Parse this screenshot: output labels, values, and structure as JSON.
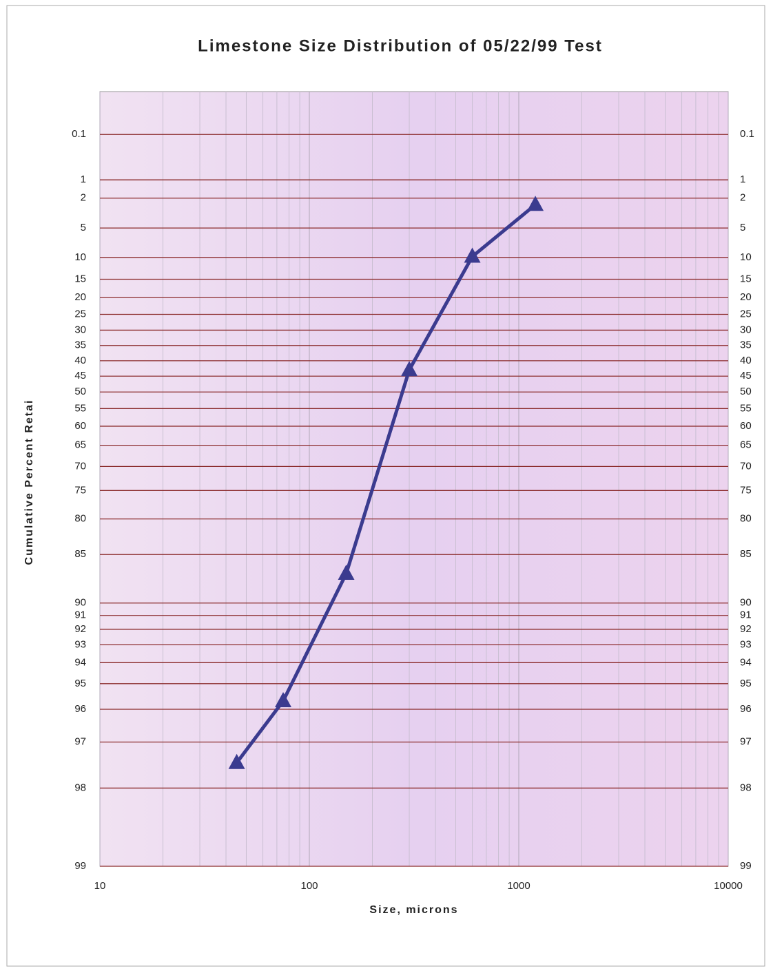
{
  "chart_data": {
    "type": "line",
    "title": "Limestone Size Distribution of 05/22/99 Test",
    "x_label": "Size, microns",
    "y_label": "Cumulative Percent Retai",
    "x": [
      45,
      75,
      150,
      300,
      600,
      1200
    ],
    "series": [
      {
        "name": "Cumulative Percent Retained",
        "color": "#3b3b8f",
        "values": [
          97.5,
          95.7,
          87.2,
          43,
          9.8,
          2.5
        ]
      }
    ],
    "xscale": "log",
    "xlim": [
      10,
      10000
    ],
    "xticks": [
      10,
      100,
      1000,
      10000
    ],
    "yscale": "rosin-rammler",
    "ylim": [
      99,
      0.004
    ],
    "yticks": [
      0.1,
      1,
      2,
      5,
      10,
      15,
      20,
      25,
      30,
      35,
      40,
      45,
      50,
      55,
      60,
      65,
      70,
      75,
      80,
      85,
      90,
      91,
      92,
      93,
      94,
      95,
      96,
      97,
      98,
      99
    ],
    "grid": true
  }
}
